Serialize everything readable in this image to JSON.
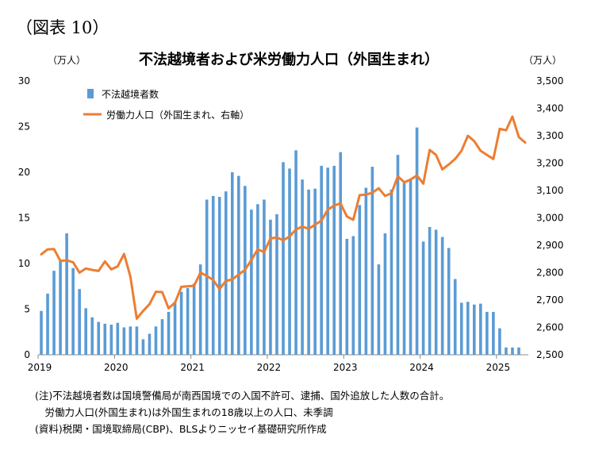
{
  "figure_label": "（図表 10）",
  "notes": [
    "(注)不法越境者数は国境警備局が南西国境での入国不許可、逮捕、国外追放した人数の合計。",
    "　労働力人口(外国生まれ)は外国生まれの18歳以上の人口、未季調",
    "(資料)税関・国境取締局(CBP)、BLSよりニッセイ基礎研究所作成"
  ],
  "colors": {
    "bar": "#5B9BD5",
    "line": "#ED7D31",
    "axis": "#888888"
  },
  "chart_data": {
    "type": "bar+line",
    "title": "不法越境者および米労働力人口（外国生まれ）",
    "left_unit": "（万人）",
    "right_unit": "（万人）",
    "ylim_left": [
      0,
      30
    ],
    "yticks_left": [
      "0",
      "5",
      "10",
      "15",
      "20",
      "25",
      "30"
    ],
    "ylim_right": [
      2500,
      3500
    ],
    "yticks_right": [
      "2,500",
      "2,600",
      "2,700",
      "2,800",
      "2,900",
      "3,000",
      "3,100",
      "3,200",
      "3,300",
      "3,400",
      "3,500"
    ],
    "x_labels": [
      "2019",
      "2020",
      "2021",
      "2022",
      "2023",
      "2024",
      "2025"
    ],
    "x_start": "2019-01",
    "legend_position": "top-left",
    "series": [
      {
        "name": "不法越境者数",
        "type": "bar",
        "axis": "left",
        "values": [
          4.8,
          6.7,
          9.2,
          10.3,
          13.3,
          9.5,
          7.2,
          5.1,
          4.1,
          3.6,
          3.4,
          3.3,
          3.5,
          3.0,
          3.1,
          3.1,
          1.7,
          2.3,
          3.1,
          3.9,
          4.7,
          5.8,
          6.9,
          7.3,
          7.8,
          9.9,
          17.0,
          17.4,
          17.3,
          17.9,
          20.0,
          19.6,
          18.5,
          15.9,
          16.5,
          17.0,
          14.8,
          15.4,
          21.1,
          20.4,
          22.4,
          19.2,
          18.1,
          18.2,
          20.7,
          20.5,
          20.7,
          22.2,
          12.7,
          13.0,
          16.4,
          18.3,
          20.6,
          9.9,
          13.3,
          18.1,
          21.9,
          18.8,
          19.2,
          24.9,
          12.4,
          14.0,
          13.7,
          12.9,
          11.7,
          8.3,
          5.7,
          5.8,
          5.5,
          5.6,
          4.7,
          4.7,
          2.9,
          0.8,
          0.8,
          0.8
        ]
      },
      {
        "name": "労働力人口（外国生まれ、右軸）",
        "type": "line",
        "axis": "right",
        "values": [
          2867,
          2885,
          2886,
          2843,
          2845,
          2838,
          2800,
          2815,
          2810,
          2806,
          2841,
          2812,
          2823,
          2868,
          2785,
          2632,
          2660,
          2685,
          2730,
          2729,
          2670,
          2690,
          2748,
          2750,
          2752,
          2800,
          2788,
          2773,
          2740,
          2770,
          2775,
          2793,
          2810,
          2846,
          2885,
          2875,
          2925,
          2928,
          2918,
          2932,
          2958,
          2968,
          2960,
          2975,
          2990,
          3030,
          3045,
          3053,
          3005,
          2993,
          3083,
          3085,
          3092,
          3108,
          3080,
          3090,
          3152,
          3130,
          3140,
          3155,
          3125,
          3248,
          3230,
          3177,
          3195,
          3215,
          3245,
          3300,
          3280,
          3245,
          3230,
          3215,
          3325,
          3320,
          3370,
          3295,
          3275
        ]
      }
    ]
  }
}
